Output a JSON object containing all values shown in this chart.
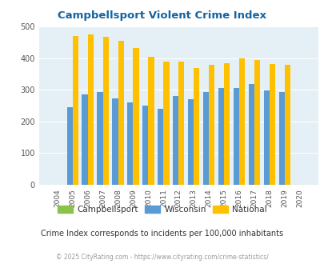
{
  "title": "Campbellsport Violent Crime Index",
  "years": [
    2004,
    2005,
    2006,
    2007,
    2008,
    2009,
    2010,
    2011,
    2012,
    2013,
    2014,
    2015,
    2016,
    2017,
    2018,
    2019,
    2020
  ],
  "campbellsport": [
    0,
    0,
    0,
    0,
    0,
    0,
    0,
    0,
    0,
    0,
    0,
    0,
    0,
    0,
    0,
    0,
    0
  ],
  "wisconsin": [
    0,
    245,
    285,
    292,
    273,
    260,
    250,
    240,
    281,
    270,
    293,
    306,
    306,
    318,
    299,
    294,
    0
  ],
  "national": [
    0,
    469,
    474,
    467,
    455,
    432,
    405,
    388,
    388,
    368,
    379,
    384,
    398,
    394,
    381,
    380,
    0
  ],
  "bar_color_campbellsport": "#8bc34a",
  "bar_color_wisconsin": "#5b9bd5",
  "bar_color_national": "#ffc000",
  "bg_color": "#e4f0f5",
  "title_color": "#1464a0",
  "ylim": [
    0,
    500
  ],
  "yticks": [
    0,
    100,
    200,
    300,
    400,
    500
  ],
  "subtitle": "Crime Index corresponds to incidents per 100,000 inhabitants",
  "footer": "© 2025 CityRating.com - https://www.cityrating.com/crime-statistics/",
  "bar_width": 0.38
}
